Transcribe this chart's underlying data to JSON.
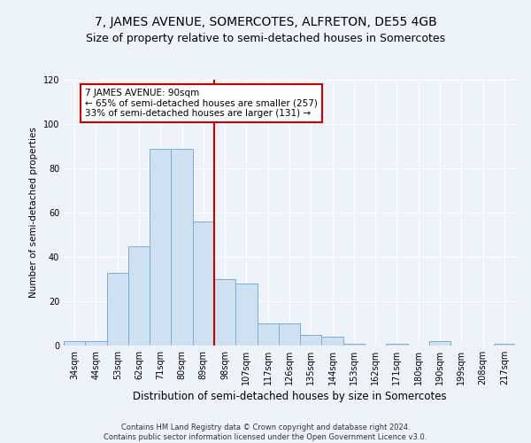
{
  "title": "7, JAMES AVENUE, SOMERCOTES, ALFRETON, DE55 4GB",
  "subtitle": "Size of property relative to semi-detached houses in Somercotes",
  "xlabel": "Distribution of semi-detached houses by size in Somercotes",
  "ylabel": "Number of semi-detached properties",
  "footer_line1": "Contains HM Land Registry data © Crown copyright and database right 2024.",
  "footer_line2": "Contains public sector information licensed under the Open Government Licence v3.0.",
  "categories": [
    "34sqm",
    "44sqm",
    "53sqm",
    "62sqm",
    "71sqm",
    "80sqm",
    "89sqm",
    "98sqm",
    "107sqm",
    "117sqm",
    "126sqm",
    "135sqm",
    "144sqm",
    "153sqm",
    "162sqm",
    "171sqm",
    "180sqm",
    "190sqm",
    "199sqm",
    "208sqm",
    "217sqm"
  ],
  "values": [
    2,
    2,
    33,
    45,
    89,
    89,
    56,
    30,
    28,
    10,
    10,
    5,
    4,
    1,
    0,
    1,
    0,
    2,
    0,
    0,
    1
  ],
  "bar_color": "#cfe0f0",
  "bar_edge_color": "#7bafd4",
  "vline_x_index": 6,
  "vline_color": "#cc0000",
  "annotation_title": "7 JAMES AVENUE: 90sqm",
  "annotation_line1": "← 65% of semi-detached houses are smaller (257)",
  "annotation_line2": "33% of semi-detached houses are larger (131) →",
  "annotation_box_color": "#cc0000",
  "ylim": [
    0,
    120
  ],
  "yticks": [
    0,
    20,
    40,
    60,
    80,
    100,
    120
  ],
  "background_color": "#eef2f9",
  "plot_bg_color": "#eef2f9",
  "grid_color": "#ffffff",
  "title_fontsize": 10,
  "subtitle_fontsize": 9,
  "xlabel_fontsize": 8.5,
  "ylabel_fontsize": 7.5,
  "tick_fontsize": 7,
  "footer_fontsize": 6,
  "annotation_fontsize": 7.5
}
